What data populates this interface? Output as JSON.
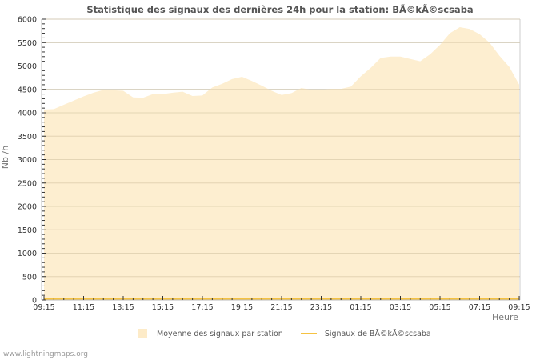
{
  "title": "Statistique des signaux des dernières 24h pour la station: BÃ©kÃ©scsaba",
  "footer": "www.lightningmaps.org",
  "colors": {
    "area": "#fdebc8",
    "line": "#f5c242",
    "grid": "#cccccc",
    "axis": "#bbbbbb"
  },
  "legend": {
    "area_label": "Moyenne des signaux par station",
    "line_label": "Signaux de BÃ©kÃ©scsaba"
  },
  "chart_data": {
    "type": "area",
    "title": "Statistique des signaux des dernières 24h pour la station: BÃ©kÃ©scsaba",
    "xlabel": "Heure",
    "ylabel": "Nb /h",
    "ylim": [
      0,
      6000
    ],
    "grid": true,
    "legend_position": "bottom",
    "y_ticks": [
      0,
      500,
      1000,
      1500,
      2000,
      2500,
      3000,
      3500,
      4000,
      4500,
      5000,
      5500,
      6000
    ],
    "x_tick_labels": [
      "09:15",
      "11:15",
      "13:15",
      "15:15",
      "17:15",
      "19:15",
      "21:15",
      "23:15",
      "01:15",
      "03:15",
      "05:15",
      "07:15",
      "09:15"
    ],
    "x": [
      "09:15",
      "09:45",
      "10:15",
      "10:45",
      "11:15",
      "11:45",
      "12:15",
      "12:45",
      "13:15",
      "13:45",
      "14:15",
      "14:45",
      "15:15",
      "15:45",
      "16:15",
      "16:45",
      "17:15",
      "17:45",
      "18:15",
      "18:45",
      "19:15",
      "19:45",
      "20:15",
      "20:45",
      "21:15",
      "21:45",
      "22:15",
      "22:45",
      "23:15",
      "23:45",
      "00:15",
      "00:45",
      "01:15",
      "01:45",
      "02:15",
      "02:45",
      "03:15",
      "03:45",
      "04:15",
      "04:45",
      "05:15",
      "05:45",
      "06:15",
      "06:45",
      "07:15",
      "07:45",
      "08:15",
      "08:45",
      "09:15"
    ],
    "series": [
      {
        "name": "Moyenne des signaux par station",
        "type": "area",
        "values": [
          4070,
          4080,
          4170,
          4260,
          4350,
          4430,
          4490,
          4480,
          4470,
          4330,
          4320,
          4400,
          4400,
          4430,
          4450,
          4360,
          4370,
          4540,
          4620,
          4720,
          4770,
          4680,
          4580,
          4470,
          4380,
          4420,
          4530,
          4490,
          4490,
          4510,
          4510,
          4560,
          4780,
          4960,
          5170,
          5200,
          5200,
          5150,
          5100,
          5250,
          5450,
          5700,
          5830,
          5790,
          5680,
          5500,
          5220,
          4980,
          4600
        ]
      },
      {
        "name": "Signaux de BÃ©kÃ©scsaba",
        "type": "line",
        "values": [
          0,
          0,
          0,
          0,
          0,
          0,
          0,
          0,
          0,
          0,
          0,
          0,
          0,
          0,
          0,
          0,
          0,
          0,
          0,
          0,
          0,
          0,
          0,
          0,
          0,
          0,
          0,
          0,
          0,
          0,
          0,
          0,
          0,
          0,
          0,
          0,
          0,
          0,
          0,
          0,
          0,
          0,
          0,
          0,
          0,
          0,
          0,
          0,
          0
        ]
      }
    ]
  }
}
